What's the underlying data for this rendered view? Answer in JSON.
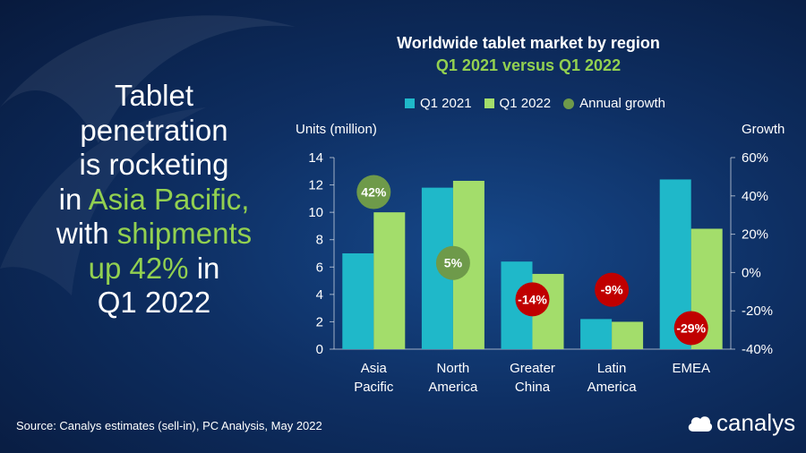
{
  "headline": {
    "l1": "Tablet",
    "l2": "penetration",
    "l3": "is rocketing",
    "l4a": "in ",
    "l4b": "Asia Pacific,",
    "l5a": "with ",
    "l5b": "shipments",
    "l6a": "up 42%",
    "l6b": " in",
    "l7": "Q1 2022"
  },
  "source": "Source: Canalys estimates (sell-in), PC Analysis, May 2022",
  "logo": "canalys",
  "colors": {
    "q1_2021": "#1fb8c9",
    "q1_2022": "#a3dd6b",
    "growth_positive": "#6e9a4a",
    "growth_negative": "#c00000",
    "accent_green": "#92d050"
  },
  "chart_data": {
    "type": "bar",
    "title": "Worldwide tablet market by region",
    "subtitle": "Q1 2021 versus Q1 2022",
    "ylabel": "Units (million)",
    "y2label": "Growth",
    "ylim": [
      0,
      14
    ],
    "yticks": [
      "0",
      "2",
      "4",
      "6",
      "8",
      "10",
      "12",
      "14"
    ],
    "y2lim": [
      -40,
      60
    ],
    "y2ticks": [
      "-40%",
      "-20%",
      "0%",
      "20%",
      "40%",
      "60%"
    ],
    "categories": [
      [
        "Asia",
        "Pacific"
      ],
      [
        "North",
        "America"
      ],
      [
        "Greater",
        "China"
      ],
      [
        "Latin",
        "America"
      ],
      [
        "EMEA"
      ]
    ],
    "series": [
      {
        "name": "Q1 2021",
        "values": [
          7.0,
          11.8,
          6.4,
          2.2,
          12.4
        ]
      },
      {
        "name": "Q1 2022",
        "values": [
          10.0,
          12.3,
          5.5,
          2.0,
          8.8
        ]
      }
    ],
    "growth": {
      "name": "Annual growth",
      "values": [
        42,
        5,
        -14,
        -9,
        -29
      ],
      "labels": [
        "42%",
        "5%",
        "-14%",
        "-9%",
        "-29%"
      ]
    },
    "legend_position": "top"
  }
}
